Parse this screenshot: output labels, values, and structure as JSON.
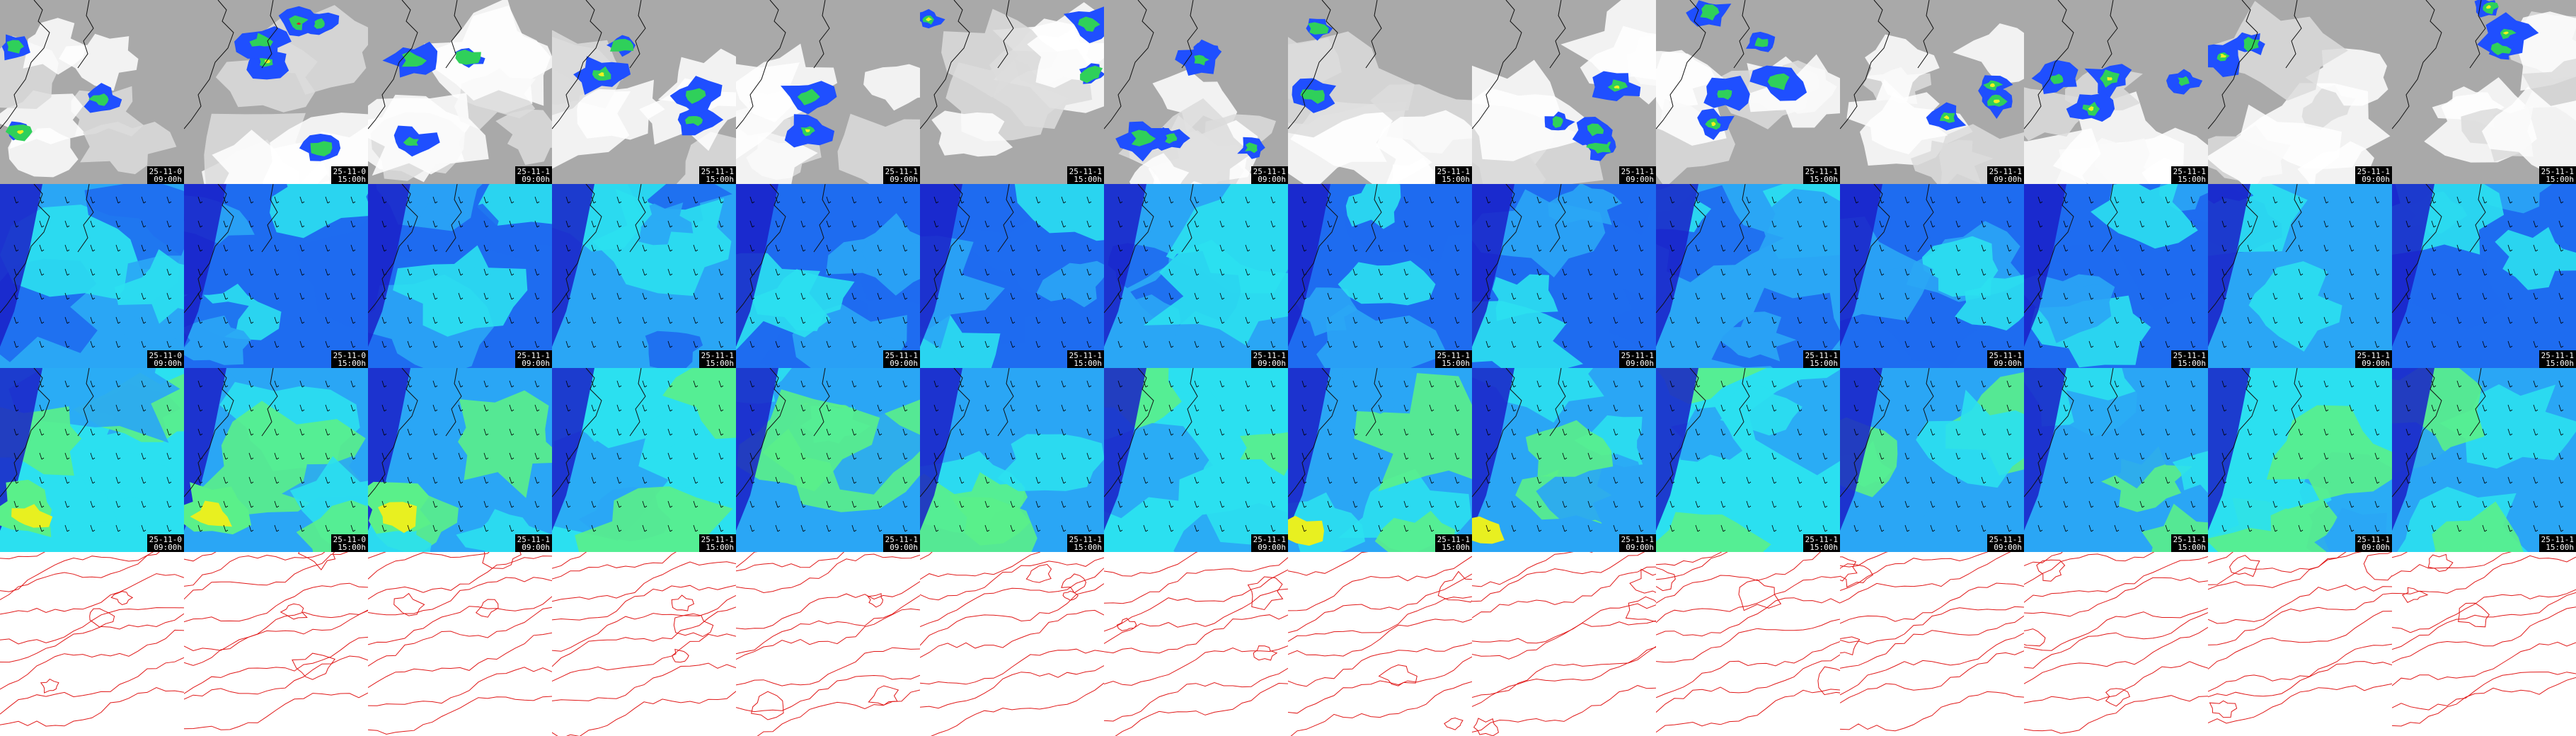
{
  "layout": {
    "columns": 14,
    "rows": [
      {
        "name": "cloud-cover",
        "theme": "cloud",
        "has_stamp": true
      },
      {
        "name": "wind-field-a",
        "theme": "wind_a",
        "has_stamp": true
      },
      {
        "name": "wind-field-b",
        "theme": "wind_b",
        "has_stamp": true
      },
      {
        "name": "pressure-contours",
        "theme": "contour",
        "has_stamp": false
      }
    ]
  },
  "stamps": [
    {
      "date": "25-11-0",
      "time": "09:00h"
    },
    {
      "date": "25-11-0",
      "time": "15:00h"
    },
    {
      "date": "25-11-1",
      "time": "09:00h"
    },
    {
      "date": "25-11-1",
      "time": "15:00h"
    },
    {
      "date": "25-11-1",
      "time": "09:00h"
    },
    {
      "date": "25-11-1",
      "time": "15:00h"
    },
    {
      "date": "25-11-1",
      "time": "09:00h"
    },
    {
      "date": "25-11-1",
      "time": "15:00h"
    },
    {
      "date": "25-11-1",
      "time": "09:00h"
    },
    {
      "date": "25-11-1",
      "time": "15:00h"
    },
    {
      "date": "25-11-1",
      "time": "09:00h"
    },
    {
      "date": "25-11-1",
      "time": "15:00h"
    },
    {
      "date": "25-11-1",
      "time": "09:00h"
    },
    {
      "date": "25-11-1",
      "time": "15:00h"
    }
  ],
  "colors": {
    "cloud_bg": "#a9a9a9",
    "cloud_light": "#dcdcdc",
    "cloud_white": "#ffffff",
    "precip_blue": "#1f4fff",
    "precip_green": "#2fd05a",
    "precip_yellow": "#f0f020",
    "precip_red": "#e0202a",
    "wind_dark": "#1a1fc8",
    "wind_mid": "#1e6cf0",
    "wind_light": "#2aa6f5",
    "wind_cyan": "#2be0f0",
    "wind_green": "#5af08a",
    "wind_yellow": "#e8f020",
    "coast": "#111111",
    "contour": "#e01818",
    "stamp_bg": "#000000",
    "stamp_fg": "#ffffff"
  },
  "icons": {
    "coastline": "coastline-icon",
    "wind_barb": "wind-barb-icon"
  }
}
